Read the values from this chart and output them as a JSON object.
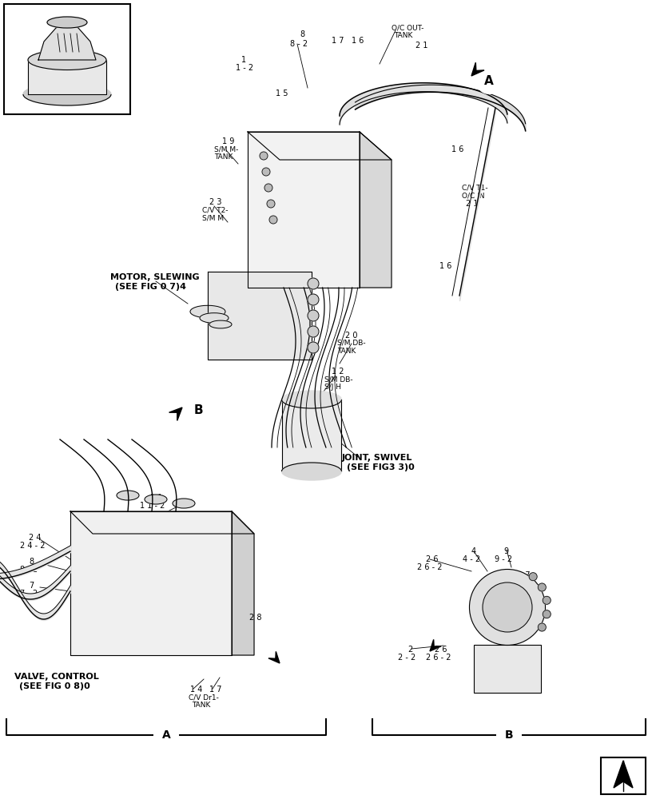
{
  "bg_color": "#ffffff",
  "line_color": "#000000",
  "labels": {
    "motor_slewing_1": "MOTOR, SLEWING",
    "motor_slewing_2": "(SEE FIG 0 7)4",
    "valve_control_1": "VALVE, CONTROL",
    "valve_control_2": "(SEE FIG 0 8)0",
    "joint_swivel_1": "JOINT, SWIVEL",
    "joint_swivel_2": "(SEE FIG3 3)0",
    "oc_out_tank_1": "O/C OUT-",
    "oc_out_tank_2": "TANK",
    "sm_m_tank_1": "S/M M-",
    "sm_m_tank_2": "TANK",
    "cv_t2_1": "C/V T2-",
    "cv_t2_2": "S/M M",
    "cv_t1_1": "C/V T1-",
    "cv_t1_2": "O/C IN",
    "sm_db_tank_1": "S/M DB-",
    "sm_db_tank_2": "TANK",
    "sm_db_sjh_1": "S/M DB-",
    "sm_db_sjh_2": "S/J H",
    "cv_dr1_1": "C/V Dr1-",
    "cv_dr1_2": "TANK"
  }
}
